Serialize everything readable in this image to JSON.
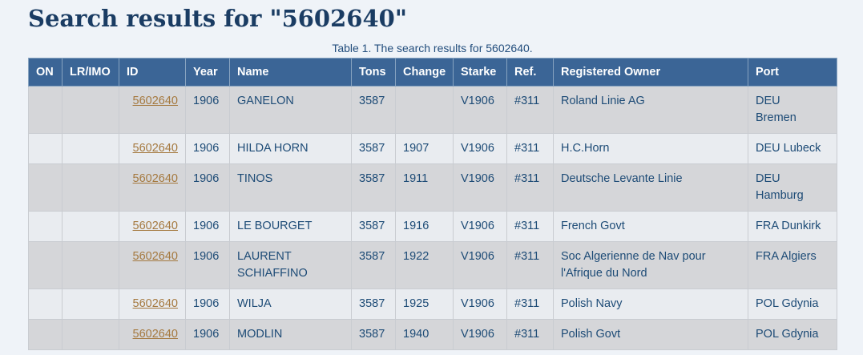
{
  "page": {
    "title": "Search results for \"5602640\""
  },
  "table": {
    "caption": "Table 1. The search results for 5602640.",
    "columns": [
      {
        "key": "on",
        "label": "ON"
      },
      {
        "key": "lrimo",
        "label": "LR/IMO"
      },
      {
        "key": "id",
        "label": "ID"
      },
      {
        "key": "year",
        "label": "Year"
      },
      {
        "key": "name",
        "label": "Name"
      },
      {
        "key": "tons",
        "label": "Tons"
      },
      {
        "key": "change",
        "label": "Change"
      },
      {
        "key": "starke",
        "label": "Starke"
      },
      {
        "key": "ref",
        "label": "Ref."
      },
      {
        "key": "owner",
        "label": "Registered Owner"
      },
      {
        "key": "port",
        "label": "Port"
      }
    ],
    "rows": [
      {
        "on": "",
        "lrimo": "",
        "id": "5602640",
        "year": "1906",
        "name": "GANELON",
        "tons": "3587",
        "change": "",
        "starke": "V1906",
        "ref": "#311",
        "owner": "Roland Linie AG",
        "port": "DEU\nBremen"
      },
      {
        "on": "",
        "lrimo": "",
        "id": "5602640",
        "year": "1906",
        "name": "HILDA HORN",
        "tons": "3587",
        "change": "1907",
        "starke": "V1906",
        "ref": "#311",
        "owner": "H.C.Horn",
        "port": "DEU Lubeck"
      },
      {
        "on": "",
        "lrimo": "",
        "id": "5602640",
        "year": "1906",
        "name": "TINOS",
        "tons": "3587",
        "change": "1911",
        "starke": "V1906",
        "ref": "#311",
        "owner": "Deutsche Levante Linie",
        "port": "DEU\nHamburg"
      },
      {
        "on": "",
        "lrimo": "",
        "id": "5602640",
        "year": "1906",
        "name": "LE BOURGET",
        "tons": "3587",
        "change": "1916",
        "starke": "V1906",
        "ref": "#311",
        "owner": "French Govt",
        "port": "FRA Dunkirk"
      },
      {
        "on": "",
        "lrimo": "",
        "id": "5602640",
        "year": "1906",
        "name": "LAURENT\nSCHIAFFINO",
        "tons": "3587",
        "change": "1922",
        "starke": "V1906",
        "ref": "#311",
        "owner": "Soc Algerienne de Nav pour\nl'Afrique du Nord",
        "port": "FRA Algiers"
      },
      {
        "on": "",
        "lrimo": "",
        "id": "5602640",
        "year": "1906",
        "name": "WILJA",
        "tons": "3587",
        "change": "1925",
        "starke": "V1906",
        "ref": "#311",
        "owner": "Polish Navy",
        "port": "POL Gdynia"
      },
      {
        "on": "",
        "lrimo": "",
        "id": "5602640",
        "year": "1906",
        "name": "MODLIN",
        "tons": "3587",
        "change": "1940",
        "starke": "V1906",
        "ref": "#311",
        "owner": "Polish Govt",
        "port": "POL Gdynia"
      }
    ]
  },
  "colors": {
    "page_bg": "#eff3f8",
    "title": "#1a3c63",
    "caption": "#234e7d",
    "header_bg": "#3b6596",
    "header_text": "#ffffff",
    "row_odd": "#d5d6d9",
    "row_even": "#e9ecf0",
    "cell_text": "#1d4b76",
    "link": "#a5793f"
  }
}
